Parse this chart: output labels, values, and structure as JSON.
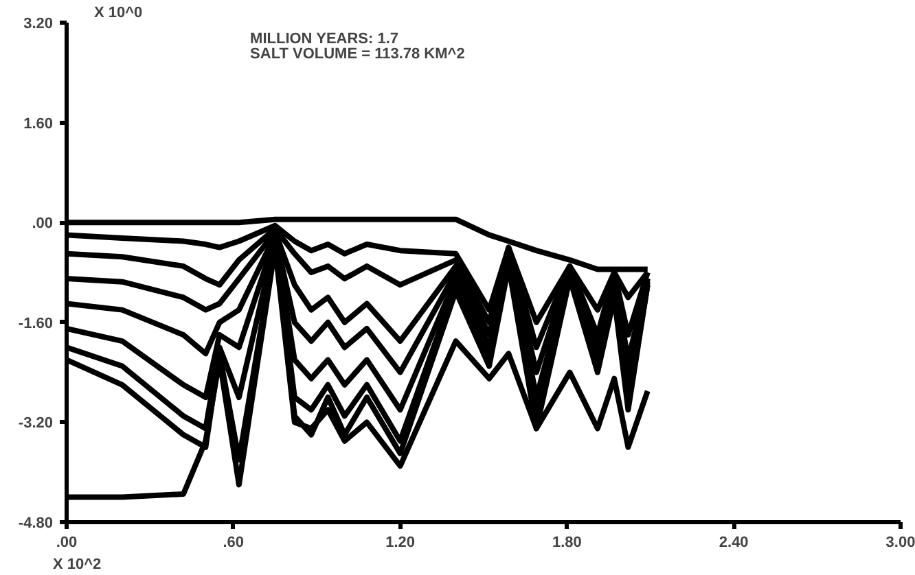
{
  "chart_data": {
    "type": "line",
    "x": [
      0,
      0.2,
      0.42,
      0.5,
      0.55,
      0.62,
      0.75,
      0.82,
      0.88,
      0.94,
      1.0,
      1.08,
      1.2,
      1.4,
      1.52,
      1.59,
      1.69,
      1.81,
      1.91,
      1.97,
      2.02,
      2.09
    ],
    "series": [
      {
        "color": "#000000",
        "values": [
          0.0,
          0.0,
          0.0,
          0.0,
          0.0,
          0.0,
          0.05,
          0.05,
          0.05,
          0.05,
          0.05,
          0.05,
          0.05,
          0.05,
          -0.2,
          -0.3,
          -0.45,
          -0.6,
          -0.75,
          -0.75,
          -0.75,
          -0.75
        ]
      },
      {
        "color": "#000000",
        "values": [
          -0.2,
          -0.25,
          -0.3,
          -0.35,
          -0.4,
          -0.3,
          -0.05,
          -0.3,
          -0.45,
          -0.35,
          -0.5,
          -0.35,
          -0.45,
          -0.5,
          -1.4,
          -0.4,
          -1.6,
          -0.7,
          -1.4,
          -0.8,
          -1.2,
          -0.8
        ]
      },
      {
        "color": "#000000",
        "values": [
          -0.5,
          -0.55,
          -0.7,
          -0.9,
          -1.0,
          -0.6,
          -0.1,
          -0.5,
          -0.8,
          -0.7,
          -0.9,
          -0.7,
          -1.0,
          -0.6,
          -1.6,
          -0.4,
          -2.0,
          -0.7,
          -1.8,
          -0.8,
          -1.8,
          -0.8
        ]
      },
      {
        "color": "#000000",
        "values": [
          -0.9,
          -0.95,
          -1.2,
          -1.4,
          -1.3,
          -0.9,
          -0.15,
          -1.0,
          -1.4,
          -1.2,
          -1.6,
          -1.3,
          -1.9,
          -0.7,
          -1.8,
          -0.45,
          -2.4,
          -0.75,
          -2.0,
          -0.9,
          -2.2,
          -0.9
        ]
      },
      {
        "color": "#000000",
        "values": [
          -1.3,
          -1.4,
          -1.8,
          -2.1,
          -1.6,
          -1.4,
          -0.2,
          -1.6,
          -1.9,
          -1.6,
          -2.0,
          -1.7,
          -2.4,
          -0.8,
          -2.0,
          -0.5,
          -2.8,
          -0.8,
          -2.1,
          -1.0,
          -2.5,
          -0.9
        ]
      },
      {
        "color": "#000000",
        "values": [
          -1.7,
          -1.9,
          -2.6,
          -2.8,
          -1.8,
          -2.0,
          -0.25,
          -2.2,
          -2.5,
          -2.2,
          -2.6,
          -2.2,
          -3.0,
          -0.9,
          -2.1,
          -0.55,
          -3.0,
          -0.8,
          -2.2,
          -1.0,
          -2.8,
          -0.95
        ]
      },
      {
        "color": "#000000",
        "values": [
          -2.0,
          -2.3,
          -3.1,
          -3.3,
          -2.0,
          -2.8,
          -0.3,
          -2.8,
          -3.0,
          -2.6,
          -3.1,
          -2.6,
          -3.5,
          -1.0,
          -2.2,
          -0.6,
          -3.2,
          -0.85,
          -2.3,
          -1.1,
          -2.9,
          -1.0
        ]
      },
      {
        "color": "#000000",
        "values": [
          -2.2,
          -2.6,
          -3.4,
          -3.6,
          -2.1,
          -3.8,
          -0.35,
          -3.1,
          -3.4,
          -2.8,
          -3.4,
          -2.8,
          -3.7,
          -1.1,
          -2.3,
          -0.7,
          -3.3,
          -0.9,
          -2.4,
          -1.2,
          -3.0,
          -1.0
        ]
      },
      {
        "color": "#000000",
        "values": [
          -4.4,
          -4.4,
          -4.35,
          -3.5,
          -2.2,
          -4.2,
          -0.4,
          -3.2,
          -3.3,
          -3.0,
          -3.5,
          -3.2,
          -3.9,
          -1.9,
          -2.5,
          -2.1,
          -3.3,
          -2.4,
          -3.3,
          -2.5,
          -3.6,
          -2.7
        ]
      }
    ],
    "xlabel": "X 10^2",
    "ylabel": "X 10^0",
    "annotations": [
      "MILLION YEARS: 1.7",
      "SALT VOLUME =    113.78 KM^2"
    ],
    "xlim": [
      0,
      3.0
    ],
    "ylim": [
      -4.8,
      3.2
    ],
    "xticks": [
      {
        "value": 0,
        "label": ".00"
      },
      {
        "value": 0.6,
        "label": ".60"
      },
      {
        "value": 1.2,
        "label": "1.20"
      },
      {
        "value": 1.8,
        "label": "1.80"
      },
      {
        "value": 2.4,
        "label": "2.40"
      },
      {
        "value": 3.0,
        "label": "3.00"
      }
    ],
    "yticks": [
      {
        "value": 3.2,
        "label": "3.20"
      },
      {
        "value": 1.6,
        "label": "1.60"
      },
      {
        "value": 0,
        "label": ".00"
      },
      {
        "value": -1.6,
        "label": "-1.60"
      },
      {
        "value": -3.2,
        "label": "-3.20"
      },
      {
        "value": -4.8,
        "label": "-4.80"
      }
    ],
    "grid": false,
    "marker": "none",
    "line_style": "solid"
  }
}
